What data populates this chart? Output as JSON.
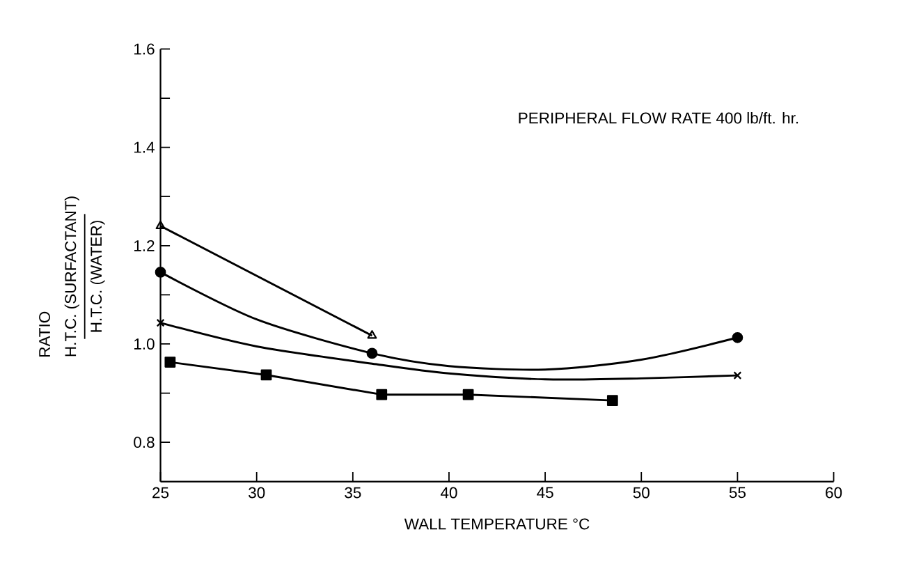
{
  "chart_data": {
    "type": "line",
    "xlabel": "WALL TEMPERATURE °C",
    "annotations": [
      "H.T.C. (SURFACTANT)",
      "H.T.C. (WATER)",
      "PERIPHERAL FLOW RATE 400 lb/ft. hr.",
      "RATIO"
    ],
    "xlim": [
      25,
      60
    ],
    "xticks": [
      25,
      30,
      35,
      40,
      45,
      50,
      55,
      60
    ],
    "ylim": [
      0.72,
      1.6
    ],
    "yticks": [
      {
        "value": 0.8,
        "label": "0.8"
      },
      {
        "value": 0.9,
        "label": null
      },
      {
        "value": 1.0,
        "label": "1.0"
      },
      {
        "value": 1.1,
        "label": null
      },
      {
        "value": 1.2,
        "label": "1.2"
      },
      {
        "value": 1.3,
        "label": null
      },
      {
        "value": 1.4,
        "label": "1.4"
      },
      {
        "value": 1.5,
        "label": null
      },
      {
        "value": 1.6,
        "label": "1.6"
      }
    ],
    "grid": false,
    "series": [
      {
        "color": "#000000",
        "marker": "triangle",
        "x": [
          25,
          36
        ],
        "values": [
          1.24,
          1.017
        ]
      },
      {
        "color": "#000000",
        "marker": "none",
        "x": [
          25,
          30,
          36,
          40,
          45,
          50,
          55
        ],
        "values": [
          1.146,
          1.05,
          0.981,
          0.955,
          0.948,
          0.968,
          1.013
        ]
      },
      {
        "type": "scatter",
        "color": "#000000",
        "marker": "circle",
        "x": [
          25,
          36,
          55
        ],
        "values": [
          1.146,
          0.981,
          1.013
        ]
      },
      {
        "color": "#000000",
        "marker": "none",
        "x": [
          25,
          30,
          36,
          40,
          45,
          50,
          55
        ],
        "values": [
          1.043,
          0.995,
          0.96,
          0.94,
          0.928,
          0.93,
          0.936
        ]
      },
      {
        "type": "scatter",
        "color": "#000000",
        "marker": "cross",
        "x": [
          25,
          55
        ],
        "values": [
          1.043,
          0.936
        ]
      },
      {
        "color": "#000000",
        "marker": "square",
        "x": [
          25.5,
          30.5,
          36.5,
          41,
          48.5
        ],
        "values": [
          0.963,
          0.937,
          0.897,
          0.897,
          0.885
        ]
      }
    ]
  }
}
